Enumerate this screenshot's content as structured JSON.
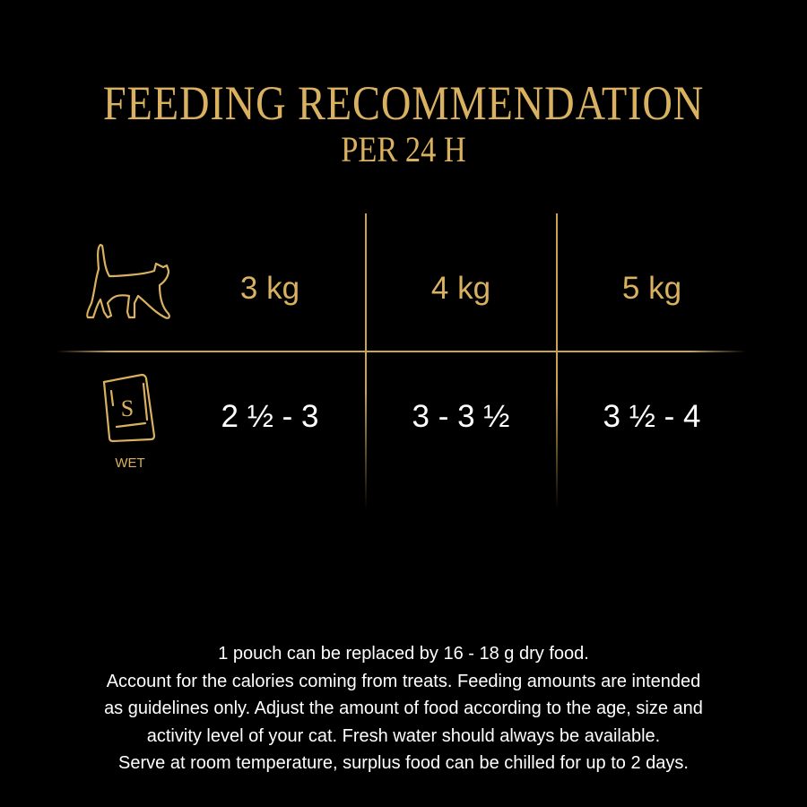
{
  "header": {
    "title": "FEEDING RECOMMENDATION",
    "subtitle": "PER 24 H"
  },
  "table": {
    "weight_icon": "cat-icon",
    "weights": [
      "3 kg",
      "4 kg",
      "5 kg"
    ],
    "food_icon": "pouch-icon",
    "food_icon_letter": "S",
    "food_type": "WET",
    "amounts": [
      "2 ½ - 3",
      "3 - 3 ½",
      "3 ½ - 4"
    ]
  },
  "footer": {
    "lines": [
      "1 pouch can be replaced by 16 - 18 g dry food.",
      "Account for the calories coming from treats. Feeding amounts are intended",
      "as guidelines only. Adjust the amount of food according to the age, size and",
      "activity level of your cat. Fresh water should always be available.",
      "Serve at room temperature, surplus food can be chilled for up to 2 days."
    ]
  },
  "colors": {
    "background": "#000000",
    "gold": "#d9b160",
    "text": "#ffffff"
  }
}
